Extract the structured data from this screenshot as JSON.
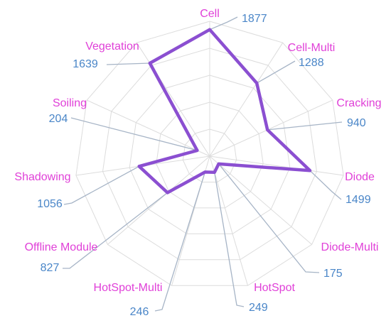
{
  "chart_data": {
    "type": "radar",
    "title": "",
    "categories": [
      "Cell",
      "Cell-Multi",
      "Cracking",
      "Diode",
      "Diode-Multi",
      "HotSpot",
      "HotSpot-Multi",
      "Offline Module",
      "Shadowing",
      "Soiling",
      "Vegetation"
    ],
    "series": [
      {
        "values": [
          1877,
          1288,
          940,
          1499,
          175,
          249,
          246,
          827,
          1056,
          204,
          1639
        ]
      }
    ],
    "value_labels": [
      "1877",
      "1288",
      "940",
      "1499",
      "175",
      "249",
      "246",
      "827",
      "1056",
      "204",
      "1639"
    ],
    "rlim": [
      0,
      2000
    ],
    "grid": true,
    "legend": "none",
    "colors": {
      "series": "#8b4fd1",
      "category_label": "#e040d8",
      "value_label": "#4a86c8",
      "grid": "#dcdcdc",
      "leader": "#a6b4c6"
    }
  }
}
